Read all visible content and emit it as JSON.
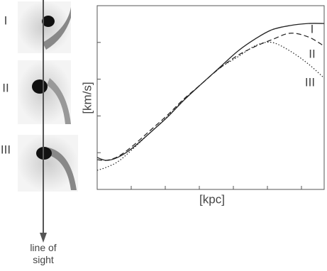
{
  "panels": [
    "I",
    "II",
    "III"
  ],
  "arrow_label": "line of sight",
  "chart_data": {
    "type": "line",
    "xlabel": "[kpc]",
    "ylabel": "[km/s]",
    "x": [
      0,
      4,
      9,
      15,
      23,
      31,
      38,
      46,
      54,
      62,
      70,
      77,
      85,
      93,
      100
    ],
    "xlim": [
      0,
      100
    ],
    "ylim": [
      0,
      100
    ],
    "xticks": [
      0,
      15,
      30,
      45,
      60,
      75,
      90
    ],
    "yticks": [
      0,
      20,
      40,
      60,
      80
    ],
    "series": [
      {
        "name": "I",
        "color": "#222222",
        "style": "solid",
        "values": [
          17.4,
          15.8,
          17.4,
          22,
          30.5,
          39.4,
          48.3,
          57.5,
          66.4,
          75.3,
          82.2,
          86.9,
          89.2,
          90.3,
          90.3
        ]
      },
      {
        "name": "II",
        "color": "#222222",
        "style": "dashed",
        "values": [
          16.2,
          15.8,
          17.8,
          23,
          31.7,
          40.5,
          49,
          57.5,
          66,
          73,
          78,
          81.5,
          85,
          83,
          78
        ]
      },
      {
        "name": "III",
        "color": "#222222",
        "style": "dotted",
        "values": [
          10.4,
          12,
          15,
          21.2,
          30.5,
          39.8,
          48.6,
          57.5,
          66,
          72.2,
          78.4,
          80,
          75.3,
          68.3,
          60.6
        ]
      }
    ]
  }
}
